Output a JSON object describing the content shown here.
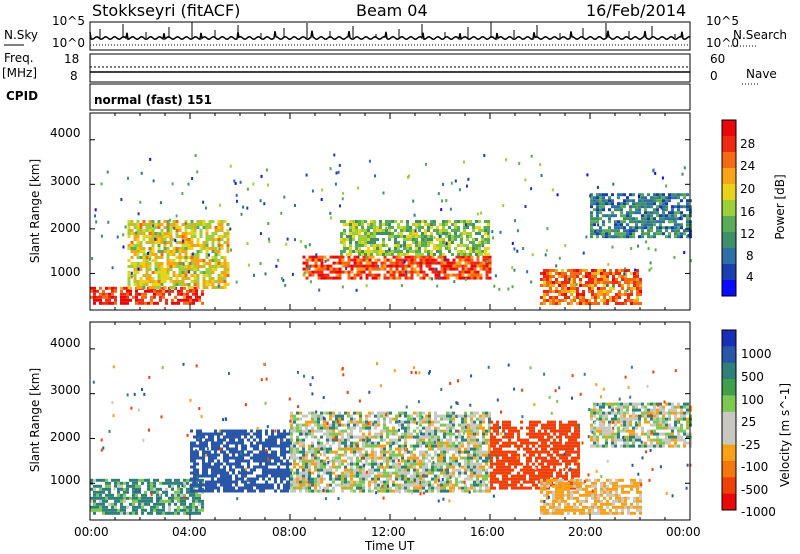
{
  "header": {
    "station": "Stokkseyri (fitACF)",
    "beam": "Beam 04",
    "date": "16/Feb/2014"
  },
  "noise_panel": {
    "left_label": "N.Sky",
    "right_label": "N.Search",
    "left_ticks": [
      "10^5",
      "10^0"
    ],
    "right_ticks": [
      "10^5",
      "10^0"
    ]
  },
  "freq_panel": {
    "left_label_1": "Freq.",
    "left_label_2": "[MHz]",
    "right_label": "Nave",
    "left_ticks": [
      "18",
      "8"
    ],
    "right_ticks": [
      "60",
      "0"
    ]
  },
  "cpid": {
    "label": "CPID",
    "value": "normal (fast) 151"
  },
  "colors": {
    "power_scale": [
      "#0a0aff",
      "#1a3fb0",
      "#2f6fa8",
      "#3f8f6a",
      "#5aab55",
      "#9ccf3a",
      "#e8d21a",
      "#f7a418",
      "#f46a14",
      "#ee2a12",
      "#e80808"
    ],
    "velocity_scale": [
      "#e80808",
      "#f0400a",
      "#f4780e",
      "#f8a018",
      "#c8c8c0",
      "#c8c8c0",
      "#7cc850",
      "#3f9f4a",
      "#2f7f7a",
      "#2a56a8",
      "#1a2fb8"
    ]
  },
  "chart_data": [
    {
      "type": "heatmap",
      "name": "power",
      "ylabel": "Slant Range [km]",
      "xlabel": "",
      "ylim": [
        180,
        4600
      ],
      "y_ticks": [
        "4000",
        "3000",
        "2000",
        "1000"
      ],
      "y_tick_values": [
        4000,
        3000,
        2000,
        1000
      ],
      "colorbar_label": "Power [dB]",
      "colorbar_ticks": [
        "28",
        "24",
        "20",
        "16",
        "12",
        "8",
        "4"
      ],
      "colorbar_range": [
        0,
        30
      ],
      "features": [
        {
          "x_hours": [
            0.0,
            4.5
          ],
          "range_km": [
            300,
            700
          ],
          "value": 27
        },
        {
          "x_hours": [
            1.5,
            5.5
          ],
          "range_km": [
            700,
            2200
          ],
          "value": 18
        },
        {
          "x_hours": [
            8.5,
            16.0
          ],
          "range_km": [
            900,
            1400
          ],
          "value": 26
        },
        {
          "x_hours": [
            10.0,
            16.0
          ],
          "range_km": [
            1400,
            2200
          ],
          "value": 14
        },
        {
          "x_hours": [
            18.0,
            22.0
          ],
          "range_km": [
            300,
            1100
          ],
          "value": 24
        },
        {
          "x_hours": [
            20.0,
            24.0
          ],
          "range_km": [
            1800,
            2800
          ],
          "value": 8
        }
      ]
    },
    {
      "type": "heatmap",
      "name": "velocity",
      "ylabel": "Slant Range [km]",
      "xlabel": "Time UT",
      "ylim": [
        180,
        4600
      ],
      "y_ticks": [
        "4000",
        "3000",
        "2000",
        "1000"
      ],
      "y_tick_values": [
        4000,
        3000,
        2000,
        1000
      ],
      "x_ticks": [
        "00:00",
        "04:00",
        "08:00",
        "12:00",
        "16:00",
        "20:00",
        "00:00"
      ],
      "x_tick_values": [
        0,
        4,
        8,
        12,
        16,
        20,
        24
      ],
      "colorbar_label": "Velocity [m s^-1]",
      "colorbar_ticks": [
        "1000",
        "500",
        "100",
        "25",
        "-25",
        "-100",
        "-500",
        "-1000"
      ],
      "features": [
        {
          "x_hours": [
            0.0,
            4.5
          ],
          "range_km": [
            300,
            1100
          ],
          "value": 100
        },
        {
          "x_hours": [
            4.0,
            8.0
          ],
          "range_km": [
            800,
            2200
          ],
          "value": 500
        },
        {
          "x_hours": [
            8.0,
            16.0
          ],
          "range_km": [
            800,
            2600
          ],
          "value": 0
        },
        {
          "x_hours": [
            16.0,
            19.5
          ],
          "range_km": [
            900,
            2400
          ],
          "value": -500
        },
        {
          "x_hours": [
            18.0,
            22.0
          ],
          "range_km": [
            300,
            1100
          ],
          "value": -100
        },
        {
          "x_hours": [
            20.0,
            24.0
          ],
          "range_km": [
            1800,
            2800
          ],
          "value": 0
        }
      ]
    }
  ]
}
